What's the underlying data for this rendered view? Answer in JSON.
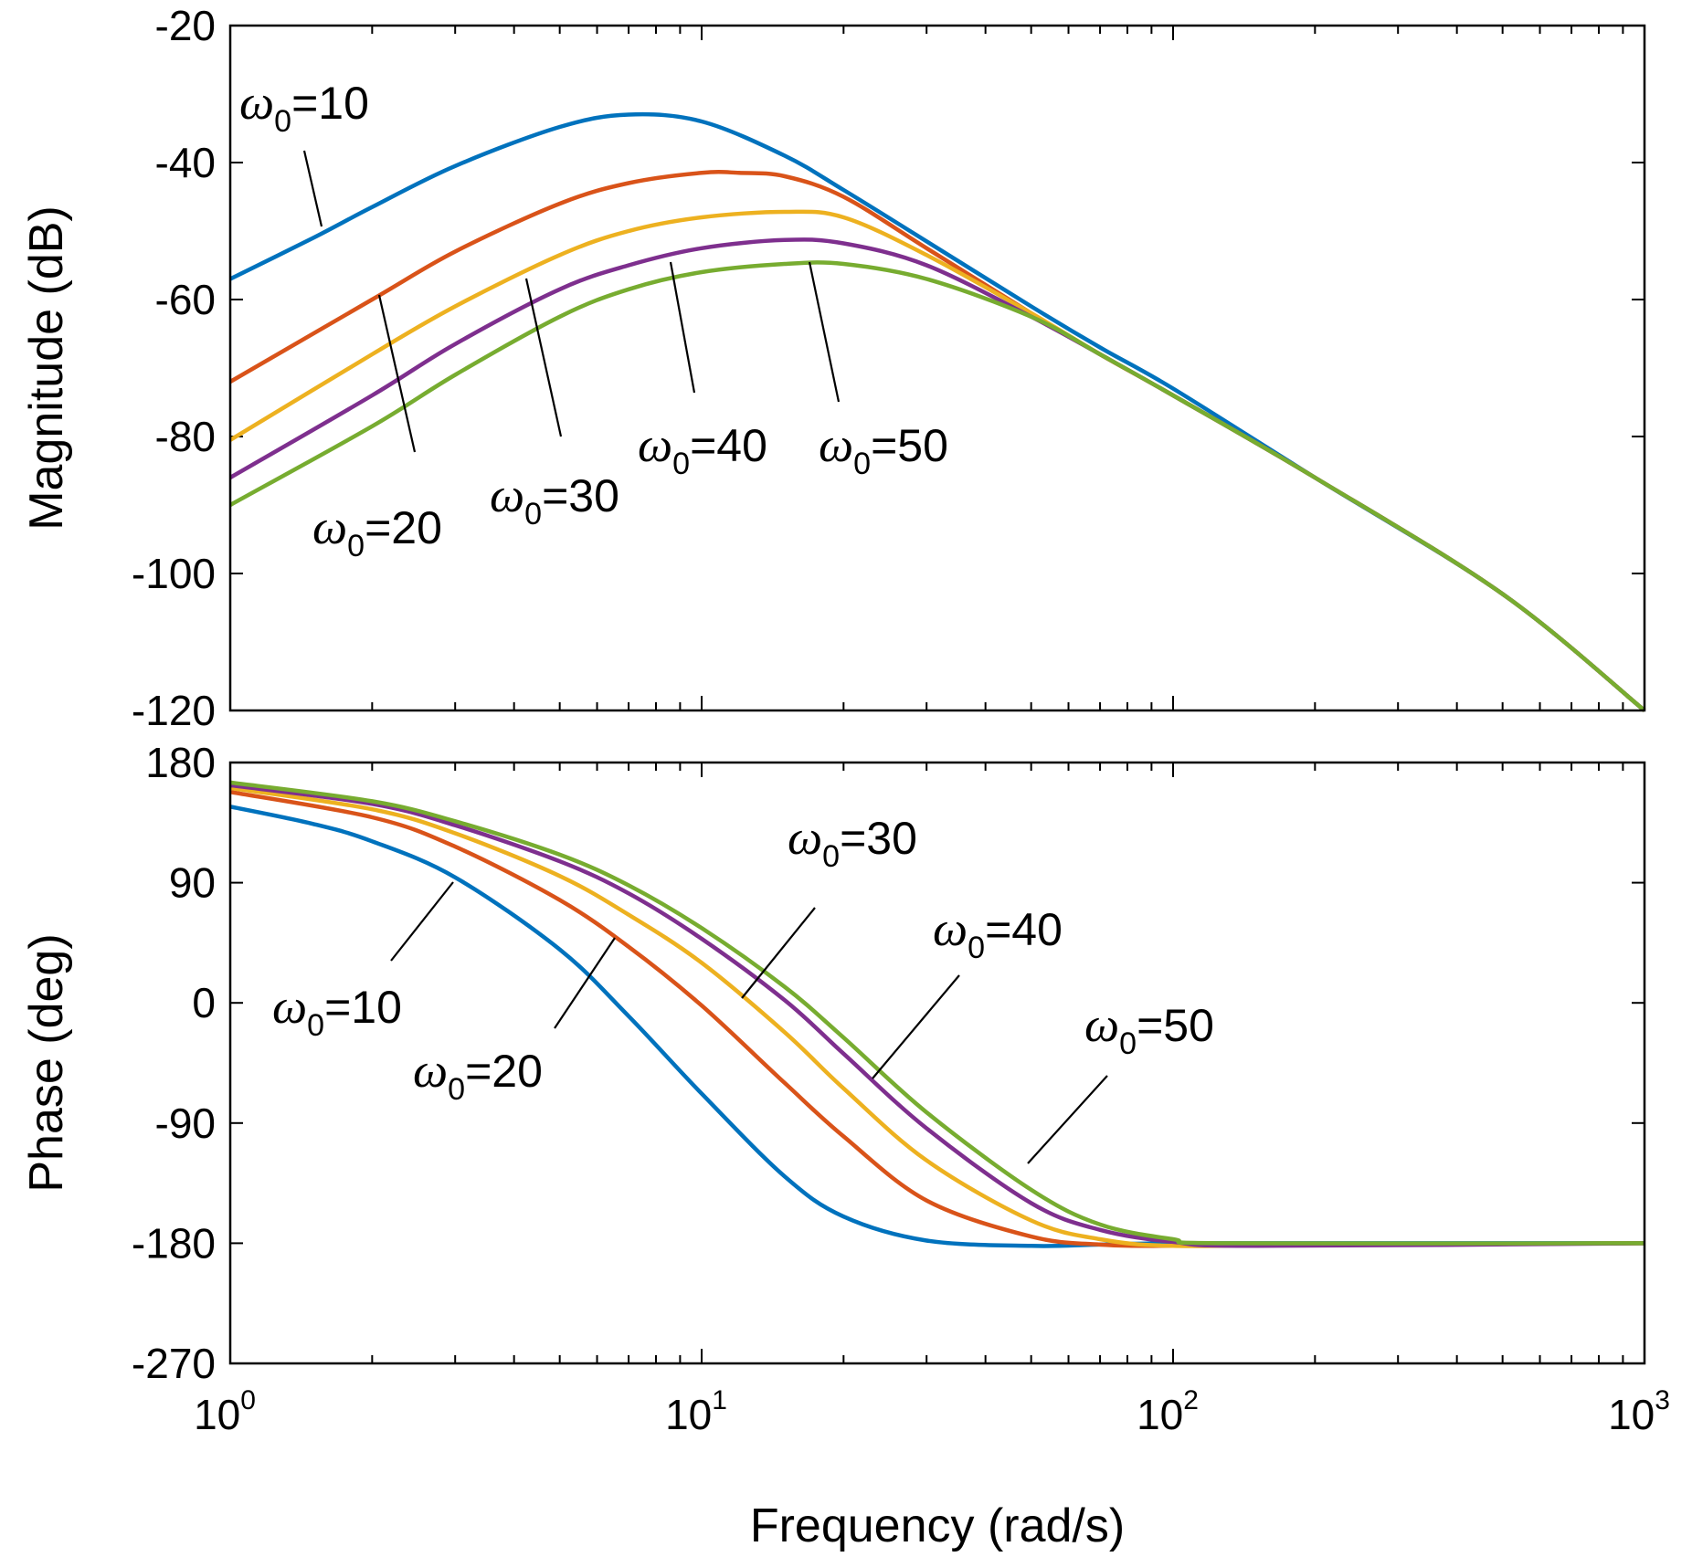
{
  "chart_data": [
    {
      "type": "line",
      "panel": "magnitude",
      "xscale": "log",
      "xlim": [
        1,
        1000
      ],
      "ylim": [
        -120,
        -20
      ],
      "ylabel": "Magnitude (dB)",
      "yticks": [
        "-20",
        "-40",
        "-60",
        "-80",
        "-100",
        "-120"
      ],
      "series": [
        {
          "name": "ω0=10",
          "color": "#0072BD",
          "x": [
            1,
            1.5,
            2,
            3,
            5,
            7,
            10,
            15,
            20,
            30,
            50,
            70,
            100,
            200,
            500,
            1000
          ],
          "y": [
            -57,
            -51,
            -46.5,
            -40.5,
            -34.8,
            -33,
            -34,
            -39,
            -44,
            -51.5,
            -61,
            -67,
            -73,
            -86,
            -103,
            -120
          ]
        },
        {
          "name": "ω0=20",
          "color": "#D95319",
          "x": [
            1,
            2,
            3,
            5,
            7,
            10,
            12,
            15,
            20,
            30,
            50,
            70,
            100,
            200,
            500,
            1000
          ],
          "y": [
            -72,
            -60,
            -53,
            -46,
            -43,
            -41.5,
            -41.5,
            -42,
            -45,
            -52.5,
            -62,
            -68,
            -74,
            -86,
            -103,
            -120
          ]
        },
        {
          "name": "ω0=30",
          "color": "#EDB120",
          "x": [
            1,
            2,
            3,
            5,
            7,
            10,
            15,
            20,
            30,
            50,
            70,
            100,
            200,
            500,
            1000
          ],
          "y": [
            -80.5,
            -68,
            -61,
            -53.5,
            -50,
            -48,
            -47.2,
            -48,
            -53.5,
            -62,
            -68,
            -74,
            -86,
            -103,
            -120
          ]
        },
        {
          "name": "ω0=40",
          "color": "#7E2F8E",
          "x": [
            1,
            2,
            3,
            5,
            7,
            10,
            15,
            20,
            30,
            50,
            70,
            100,
            200,
            500,
            1000
          ],
          "y": [
            -86,
            -74,
            -66.5,
            -58.5,
            -55,
            -52.5,
            -51.3,
            -51.8,
            -55,
            -62.5,
            -68,
            -74,
            -86,
            -103,
            -120
          ]
        },
        {
          "name": "ω0=50",
          "color": "#77AC30",
          "x": [
            1,
            2,
            3,
            5,
            7,
            10,
            15,
            20,
            30,
            50,
            70,
            100,
            200,
            500,
            1000
          ],
          "y": [
            -90,
            -78.5,
            -71,
            -62.5,
            -58.5,
            -56,
            -54.8,
            -54.8,
            -57,
            -62.5,
            -68,
            -74,
            -86,
            -103,
            -120
          ]
        }
      ],
      "annotations": [
        {
          "text": "ω0=10",
          "symbol": "ω",
          "sub": "0",
          "eq": "=10"
        },
        {
          "text": "ω0=20",
          "symbol": "ω",
          "sub": "0",
          "eq": "=20"
        },
        {
          "text": "ω0=30",
          "symbol": "ω",
          "sub": "0",
          "eq": "=30"
        },
        {
          "text": "ω0=40",
          "symbol": "ω",
          "sub": "0",
          "eq": "=40"
        },
        {
          "text": "ω0=50",
          "symbol": "ω",
          "sub": "0",
          "eq": "=50"
        }
      ]
    },
    {
      "type": "line",
      "panel": "phase",
      "xscale": "log",
      "xlim": [
        1,
        1000
      ],
      "ylim": [
        -270,
        180
      ],
      "ylabel": "Phase (deg)",
      "xlabel": "Frequency  (rad/s)",
      "yticks": [
        "180",
        "90",
        "0",
        "-90",
        "-180",
        "-270"
      ],
      "xticks": [
        {
          "base": "10",
          "exp": "0"
        },
        {
          "base": "10",
          "exp": "1"
        },
        {
          "base": "10",
          "exp": "2"
        },
        {
          "base": "10",
          "exp": "3"
        }
      ],
      "series": [
        {
          "name": "ω0=10",
          "color": "#0072BD",
          "x": [
            1,
            1.5,
            2,
            3,
            5,
            7,
            10,
            15,
            20,
            30,
            50,
            70,
            100,
            200,
            1000
          ],
          "y": [
            147,
            134,
            121,
            94,
            40,
            -10,
            -68,
            -130,
            -160,
            -178,
            -182,
            -181,
            -180,
            -180,
            -180
          ]
        },
        {
          "name": "ω0=20",
          "color": "#D95319",
          "x": [
            1,
            2,
            3,
            5,
            7,
            10,
            15,
            20,
            30,
            50,
            70,
            100,
            200,
            1000
          ],
          "y": [
            158,
            139,
            117,
            77,
            42,
            -2,
            -60,
            -100,
            -148,
            -175,
            -181,
            -182,
            -181,
            -180
          ]
        },
        {
          "name": "ω0=30",
          "color": "#EDB120",
          "x": [
            1,
            2,
            3,
            5,
            7,
            10,
            15,
            20,
            30,
            50,
            70,
            100,
            200,
            1000
          ],
          "y": [
            161,
            145,
            127,
            95,
            66,
            30,
            -22,
            -64,
            -118,
            -163,
            -177,
            -182,
            -181,
            -180
          ]
        },
        {
          "name": "ω0=40",
          "color": "#7E2F8E",
          "x": [
            1,
            2,
            3,
            5,
            7,
            10,
            15,
            20,
            30,
            50,
            70,
            100,
            150,
            1000
          ],
          "y": [
            163,
            149,
            133,
            106,
            82,
            48,
            2,
            -38,
            -94,
            -150,
            -170,
            -179,
            -182,
            -180
          ]
        },
        {
          "name": "ω0=50",
          "color": "#77AC30",
          "x": [
            1,
            2,
            3,
            5,
            7,
            10,
            15,
            20,
            30,
            50,
            70,
            100,
            130,
            1000
          ],
          "y": [
            165,
            151,
            136,
            111,
            88,
            56,
            12,
            -26,
            -82,
            -140,
            -166,
            -177,
            -180,
            -180
          ]
        }
      ],
      "annotations": [
        {
          "text": "ω0=10",
          "symbol": "ω",
          "sub": "0",
          "eq": "=10"
        },
        {
          "text": "ω0=20",
          "symbol": "ω",
          "sub": "0",
          "eq": "=20"
        },
        {
          "text": "ω0=30",
          "symbol": "ω",
          "sub": "0",
          "eq": "=30"
        },
        {
          "text": "ω0=40",
          "symbol": "ω",
          "sub": "0",
          "eq": "=40"
        },
        {
          "text": "ω0=50",
          "symbol": "ω",
          "sub": "0",
          "eq": "=50"
        }
      ]
    }
  ]
}
